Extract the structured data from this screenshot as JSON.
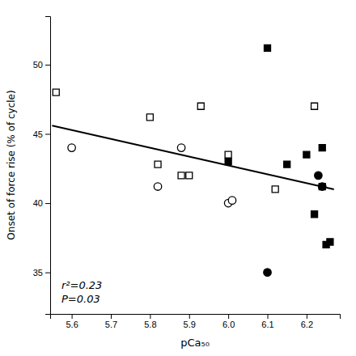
{
  "chart_data": {
    "type": "scatter",
    "xlabel": "pCa₅₀",
    "ylabel": "Onset of force rise (% of cycle)",
    "series": [
      {
        "marker": "open-square",
        "color": "#000000",
        "x": [
          5.56,
          5.8,
          5.82,
          5.88,
          5.9,
          5.93,
          6.0,
          6.12,
          6.22,
          6.24
        ],
        "values": [
          48.0,
          46.2,
          42.8,
          42.0,
          42.0,
          47.0,
          43.5,
          41.0,
          47.0,
          41.2
        ]
      },
      {
        "marker": "open-circle",
        "color": "#000000",
        "x": [
          5.6,
          5.82,
          5.88,
          6.0,
          6.01
        ],
        "values": [
          44.0,
          41.2,
          44.0,
          40.0,
          40.2
        ]
      },
      {
        "marker": "square",
        "color": "#000000",
        "x": [
          6.0,
          6.1,
          6.15,
          6.2,
          6.22,
          6.24,
          6.25,
          6.26
        ],
        "values": [
          43.0,
          51.2,
          42.8,
          43.5,
          39.2,
          44.0,
          37.0,
          37.2
        ]
      },
      {
        "marker": "circle",
        "color": "#000000",
        "x": [
          6.1,
          6.23,
          6.24
        ],
        "values": [
          35.0,
          42.0,
          41.2
        ]
      },
      {
        "type": "line",
        "color": "#000000",
        "x": [
          5.55,
          6.27
        ],
        "values": [
          45.6,
          41.0
        ]
      }
    ],
    "annotations": [
      "r²=0.23",
      "P=0.03"
    ],
    "xlim": [
      5.545,
      6.285
    ],
    "ylim": [
      32.0,
      53.5
    ],
    "xticks": [
      5.6,
      5.7,
      5.8,
      5.9,
      {
        "value": 6,
        "label": "6.0"
      },
      6.1,
      6.2
    ],
    "yticks": [
      35,
      40,
      45,
      50
    ],
    "grid": false
  }
}
